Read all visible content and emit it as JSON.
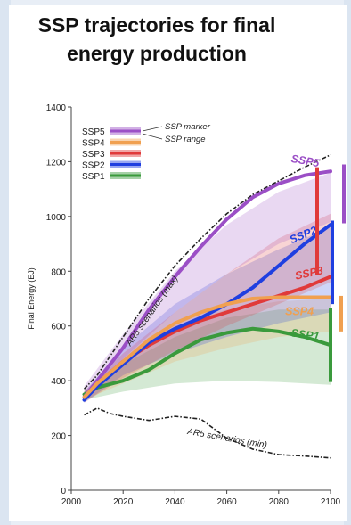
{
  "title": "SSP trajectories for final energy production",
  "colors": {
    "SSP1": "#3a9a3c",
    "SSP2": "#1f3fe0",
    "SSP3": "#e03a3a",
    "SSP4": "#f0a050",
    "SSP5": "#9b4fc6",
    "max_line": "#222222",
    "min_line": "#222222"
  },
  "chart_data": {
    "type": "line",
    "ylabel": "Final Energy (EJ)",
    "xlabel": "",
    "xlim": [
      2000,
      2100
    ],
    "ylim": [
      0,
      1400
    ],
    "xticks": [
      2000,
      2020,
      2040,
      2060,
      2080,
      2100
    ],
    "yticks": [
      0,
      200,
      400,
      600,
      800,
      1000,
      1200,
      1400
    ],
    "legend": {
      "placement": "top-left",
      "entries": [
        "SSP5",
        "SSP4",
        "SSP3",
        "SSP2",
        "SSP1"
      ],
      "marker_label": "SSP marker",
      "range_label": "SSP range"
    },
    "series": [
      {
        "name": "SSP1",
        "x": [
          2005,
          2010,
          2020,
          2030,
          2040,
          2050,
          2060,
          2070,
          2080,
          2090,
          2100
        ],
        "values": [
          350,
          375,
          400,
          440,
          500,
          550,
          575,
          590,
          580,
          560,
          530
        ]
      },
      {
        "name": "SSP2",
        "x": [
          2005,
          2010,
          2020,
          2030,
          2040,
          2050,
          2060,
          2070,
          2080,
          2090,
          2100
        ],
        "values": [
          330,
          380,
          460,
          540,
          590,
          630,
          680,
          740,
          820,
          900,
          970
        ]
      },
      {
        "name": "SSP3",
        "x": [
          2005,
          2010,
          2020,
          2030,
          2040,
          2050,
          2060,
          2070,
          2080,
          2090,
          2100
        ],
        "values": [
          340,
          390,
          470,
          530,
          580,
          620,
          650,
          680,
          710,
          740,
          780
        ]
      },
      {
        "name": "SSP4",
        "x": [
          2005,
          2010,
          2020,
          2030,
          2040,
          2050,
          2060,
          2070,
          2080,
          2090,
          2100
        ],
        "values": [
          340,
          390,
          470,
          550,
          610,
          650,
          680,
          700,
          705,
          705,
          705
        ]
      },
      {
        "name": "SSP5",
        "x": [
          2005,
          2010,
          2020,
          2030,
          2040,
          2050,
          2060,
          2070,
          2080,
          2090,
          2100
        ],
        "values": [
          340,
          400,
          520,
          660,
          780,
          890,
          990,
          1070,
          1120,
          1150,
          1165
        ]
      }
    ],
    "ranges": [
      {
        "name": "SSP1",
        "x": [
          2005,
          2020,
          2040,
          2060,
          2080,
          2100
        ],
        "low": [
          330,
          360,
          390,
          400,
          395,
          385
        ],
        "high": [
          360,
          460,
          560,
          630,
          660,
          660
        ]
      },
      {
        "name": "SSP4",
        "x": [
          2005,
          2020,
          2040,
          2060,
          2080,
          2100
        ],
        "low": [
          330,
          390,
          470,
          520,
          560,
          580
        ],
        "high": [
          360,
          480,
          600,
          660,
          690,
          700
        ]
      },
      {
        "name": "SSP2",
        "x": [
          2005,
          2020,
          2040,
          2060,
          2080,
          2100
        ],
        "low": [
          320,
          420,
          500,
          560,
          610,
          650
        ],
        "high": [
          360,
          520,
          680,
          790,
          880,
          960
        ]
      },
      {
        "name": "SSP3",
        "x": [
          2005,
          2020,
          2040,
          2060,
          2080,
          2100
        ],
        "low": [
          320,
          410,
          510,
          600,
          680,
          760
        ],
        "high": [
          360,
          500,
          650,
          790,
          920,
          1010
        ]
      },
      {
        "name": "SSP5",
        "x": [
          2005,
          2020,
          2040,
          2060,
          2080,
          2100
        ],
        "low": [
          340,
          480,
          650,
          790,
          900,
          980
        ],
        "high": [
          380,
          570,
          800,
          970,
          1090,
          1160
        ]
      }
    ],
    "bounds": [
      {
        "name": "AR5 scenarios (max)",
        "x": [
          2005,
          2010,
          2020,
          2030,
          2040,
          2050,
          2060,
          2070,
          2080,
          2090,
          2100
        ],
        "values": [
          370,
          420,
          560,
          700,
          820,
          920,
          1010,
          1080,
          1130,
          1180,
          1225
        ]
      },
      {
        "name": "AR5 scenarios (min)",
        "x": [
          2005,
          2010,
          2015,
          2020,
          2030,
          2040,
          2050,
          2060,
          2070,
          2080,
          2090,
          2100
        ],
        "values": [
          275,
          300,
          280,
          270,
          255,
          270,
          260,
          190,
          150,
          130,
          125,
          118
        ]
      }
    ],
    "side_bars": [
      {
        "name": "SSP5",
        "low": 975,
        "high": 1190
      },
      {
        "name": "SSP3",
        "low": 785,
        "high": 1180
      },
      {
        "name": "SSP2",
        "low": 680,
        "high": 985
      },
      {
        "name": "SSP4",
        "low": 580,
        "high": 710
      },
      {
        "name": "SSP1",
        "low": 395,
        "high": 665
      }
    ],
    "annotations": [
      {
        "text": "SSP5",
        "x": 2090,
        "y": 1190,
        "angle": 10,
        "color_key": "SSP5"
      },
      {
        "text": "SSP2",
        "x": 2090,
        "y": 920,
        "angle": -22,
        "color_key": "SSP2"
      },
      {
        "text": "SSP3",
        "x": 2092,
        "y": 780,
        "angle": -12,
        "color_key": "SSP3"
      },
      {
        "text": "SSP4",
        "x": 2088,
        "y": 640,
        "angle": 0,
        "color_key": "SSP4"
      },
      {
        "text": "SSP1",
        "x": 2090,
        "y": 555,
        "angle": 8,
        "color_key": "SSP1"
      },
      {
        "text": "AR5 scenarios (max)",
        "x": 2032,
        "y": 650,
        "angle": -55,
        "color_key": "max_line"
      },
      {
        "text": "AR5 scenarios (min)",
        "x": 2060,
        "y": 180,
        "angle": 10,
        "color_key": "min_line"
      }
    ]
  }
}
